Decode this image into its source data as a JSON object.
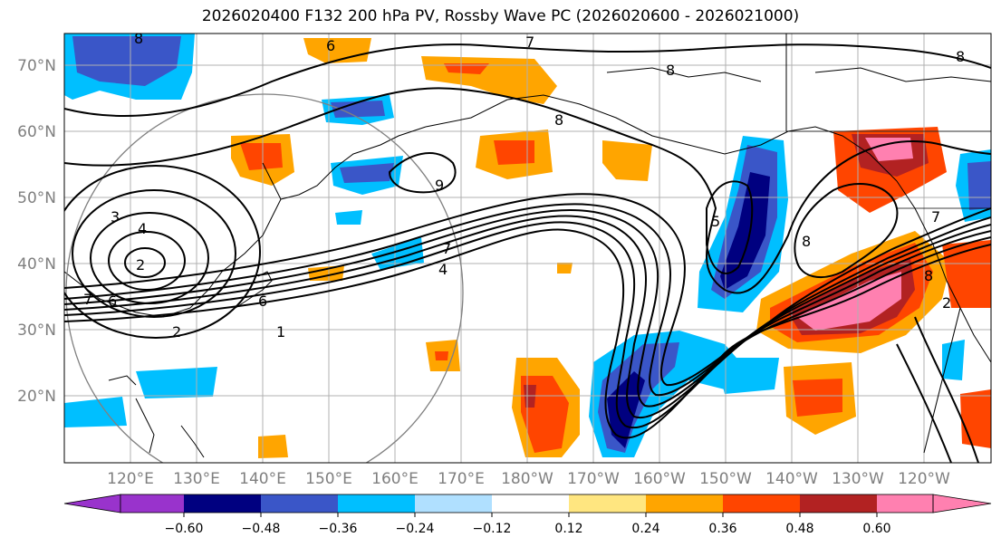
{
  "title": "2026020400 F132 200 hPa PV, Rossby Wave PC (2026020600 - 2026021000)",
  "lat_labels": [
    "70°N",
    "60°N",
    "50°N",
    "40°N",
    "30°N",
    "20°N"
  ],
  "lon_labels": [
    "120°E",
    "130°E",
    "140°E",
    "150°E",
    "160°E",
    "170°E",
    "180°W",
    "170°W",
    "160°W",
    "150°W",
    "140°W",
    "130°W",
    "120°W"
  ],
  "colorbar": {
    "colors": [
      "#9933cc",
      "#000080",
      "#3a56c8",
      "#00bfff",
      "#b0e0ff",
      "#ffffff",
      "#ffe680",
      "#ffa500",
      "#ff4500",
      "#b22222",
      "#ff80b0"
    ],
    "tick_labels": [
      "−0.60",
      "−0.48",
      "−0.36",
      "−0.24",
      "−0.12",
      "0.12",
      "0.24",
      "0.36",
      "0.48",
      "0.60"
    ]
  },
  "contour_labels": [
    "8",
    "6",
    "7",
    "8",
    "8",
    "8",
    "8",
    "9",
    "5",
    "8",
    "3",
    "4",
    "2",
    "6",
    "7",
    "6",
    "7",
    "4",
    "2",
    "1",
    "7",
    "2"
  ]
}
